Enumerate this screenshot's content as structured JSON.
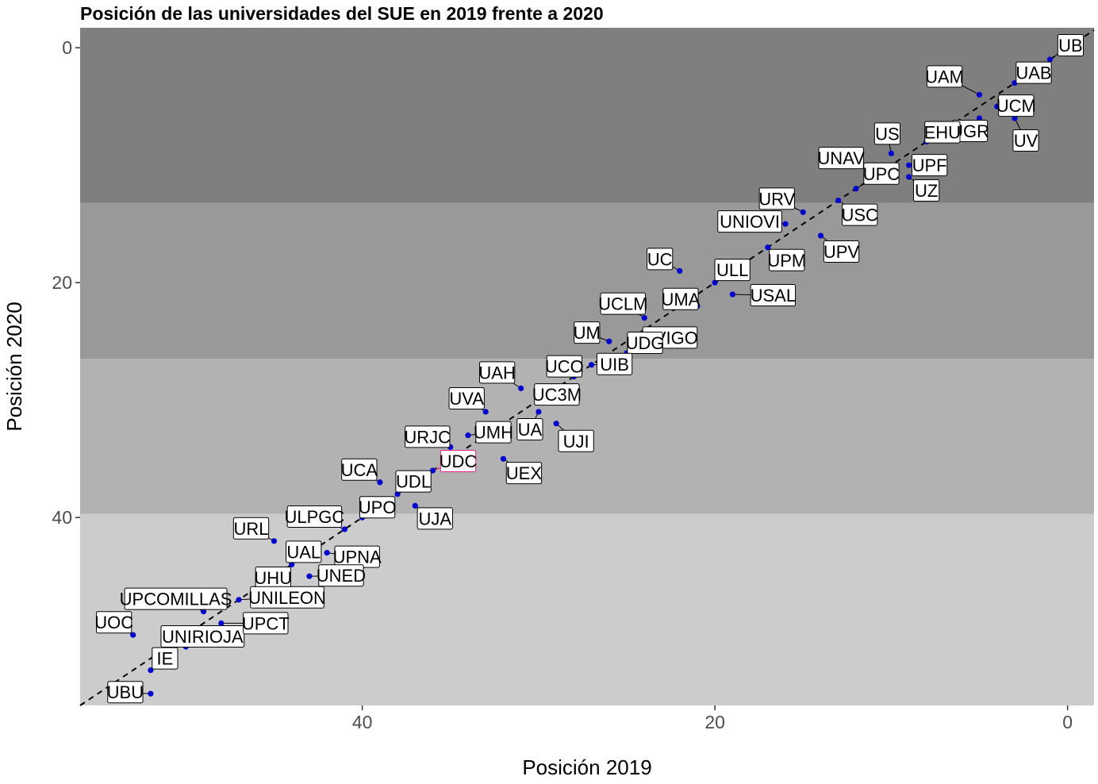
{
  "chart_data": {
    "type": "scatter",
    "title": "Posición de las universidades del SUE en 2019 frente a 2020",
    "xlabel": "Posición 2019",
    "ylabel": "Posición 2020",
    "xlim": [
      56,
      -1.5
    ],
    "ylim": [
      -1.7,
      56
    ],
    "x_reversed": true,
    "y_reversed": true,
    "xticks": [
      40,
      20,
      0
    ],
    "yticks": [
      0,
      20,
      40
    ],
    "reference_line": "y = x (dashed)",
    "background_bands": [
      {
        "from": -1.7,
        "to": 13.2,
        "color": "#7f7f7f"
      },
      {
        "from": 13.2,
        "to": 26.5,
        "color": "#999999"
      },
      {
        "from": 26.5,
        "to": 39.7,
        "color": "#b2b2b2"
      },
      {
        "from": 39.7,
        "to": 56,
        "color": "#cccccc"
      }
    ],
    "point_color": "#0000cc",
    "highlight_color": "#e0218a",
    "points": [
      {
        "label": "UB",
        "x": 1,
        "y": 1
      },
      {
        "label": "UAB",
        "x": 3,
        "y": 3
      },
      {
        "label": "UAM",
        "x": 5,
        "y": 4
      },
      {
        "label": "UCM",
        "x": 4,
        "y": 5
      },
      {
        "label": "UGR",
        "x": 5,
        "y": 6
      },
      {
        "label": "UV",
        "x": 3,
        "y": 6
      },
      {
        "label": "EHU",
        "x": 8,
        "y": 8
      },
      {
        "label": "US",
        "x": 10,
        "y": 9
      },
      {
        "label": "UNAV",
        "x": 11,
        "y": 10
      },
      {
        "label": "UPF",
        "x": 9,
        "y": 10
      },
      {
        "label": "UPC",
        "x": 12,
        "y": 12
      },
      {
        "label": "UZ",
        "x": 9,
        "y": 11
      },
      {
        "label": "URV",
        "x": 15,
        "y": 14
      },
      {
        "label": "USC",
        "x": 13,
        "y": 13
      },
      {
        "label": "UNIOVI",
        "x": 16,
        "y": 15
      },
      {
        "label": "UPM",
        "x": 17,
        "y": 17
      },
      {
        "label": "UPV",
        "x": 14,
        "y": 16
      },
      {
        "label": "UC",
        "x": 22,
        "y": 19
      },
      {
        "label": "ULL",
        "x": 20,
        "y": 20
      },
      {
        "label": "UMA",
        "x": 21,
        "y": 22
      },
      {
        "label": "USAL",
        "x": 19,
        "y": 21
      },
      {
        "label": "UCLM",
        "x": 24,
        "y": 23
      },
      {
        "label": "UVIGO",
        "x": 23,
        "y": 24
      },
      {
        "label": "UM",
        "x": 26,
        "y": 25
      },
      {
        "label": "UDG",
        "x": 25,
        "y": 26
      },
      {
        "label": "UCO",
        "x": 28,
        "y": 28
      },
      {
        "label": "UIB",
        "x": 27,
        "y": 27
      },
      {
        "label": "UAH",
        "x": 31,
        "y": 29
      },
      {
        "label": "UC3M",
        "x": 30,
        "y": 30
      },
      {
        "label": "UVA",
        "x": 33,
        "y": 31
      },
      {
        "label": "UA",
        "x": 30,
        "y": 31
      },
      {
        "label": "UJI",
        "x": 29,
        "y": 32
      },
      {
        "label": "URJC",
        "x": 35,
        "y": 34
      },
      {
        "label": "UMH",
        "x": 34,
        "y": 33
      },
      {
        "label": "UDC",
        "x": 36,
        "y": 36,
        "highlight": true
      },
      {
        "label": "UEX",
        "x": 32,
        "y": 35
      },
      {
        "label": "UCA",
        "x": 39,
        "y": 37
      },
      {
        "label": "UDL",
        "x": 38,
        "y": 38
      },
      {
        "label": "UJA",
        "x": 37,
        "y": 39
      },
      {
        "label": "UPO",
        "x": 40,
        "y": 40
      },
      {
        "label": "ULPGC",
        "x": 41,
        "y": 41
      },
      {
        "label": "URL",
        "x": 45,
        "y": 42
      },
      {
        "label": "UAL",
        "x": 44,
        "y": 44
      },
      {
        "label": "UPNA",
        "x": 42,
        "y": 43
      },
      {
        "label": "UHU",
        "x": 46,
        "y": 46
      },
      {
        "label": "UNED",
        "x": 43,
        "y": 45
      },
      {
        "label": "UPCOMILLAS",
        "x": 49,
        "y": 48
      },
      {
        "label": "UNILEON",
        "x": 47,
        "y": 47
      },
      {
        "label": "UOC",
        "x": 53,
        "y": 50
      },
      {
        "label": "UNIRIOJA",
        "x": 50,
        "y": 51
      },
      {
        "label": "UPCT",
        "x": 48,
        "y": 49
      },
      {
        "label": "IE",
        "x": 52,
        "y": 53
      },
      {
        "label": "UBU",
        "x": 52,
        "y": 55
      }
    ]
  }
}
